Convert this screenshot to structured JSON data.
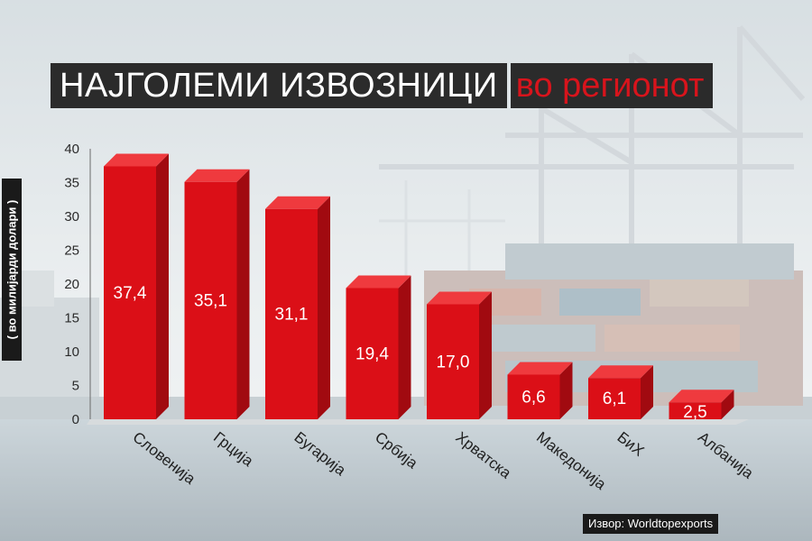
{
  "title": "НАЈГОЛЕМИ ИЗВОЗНИЦИ",
  "subtitle": "во регионот",
  "source": "Извор: Worldtopexports",
  "colors": {
    "bar_front": "#db0f17",
    "bar_side": "#a10a10",
    "bar_top": "#ef3a3e",
    "title_accent": "#d8141c"
  },
  "chart_data": {
    "type": "bar",
    "title": "НАЈГОЛЕМИ ИЗВОЗНИЦИ во регионот",
    "xlabel": "",
    "ylabel": "( во милијарди долари )",
    "ylim": [
      0,
      40
    ],
    "yticks": [
      0,
      5,
      10,
      15,
      20,
      25,
      30,
      35,
      40
    ],
    "categories": [
      "Словенија",
      "Грција",
      "Бугарија",
      "Србија",
      "Хрватска",
      "Македонија",
      "БиХ",
      "Албанија"
    ],
    "values": [
      37.4,
      35.1,
      31.1,
      19.4,
      17.0,
      6.6,
      6.1,
      2.5
    ],
    "value_labels": [
      "37,4",
      "35,1",
      "31,1",
      "19,4",
      "17,0",
      "6,6",
      "6,1",
      "2,5"
    ],
    "grid": false,
    "legend": "none"
  }
}
